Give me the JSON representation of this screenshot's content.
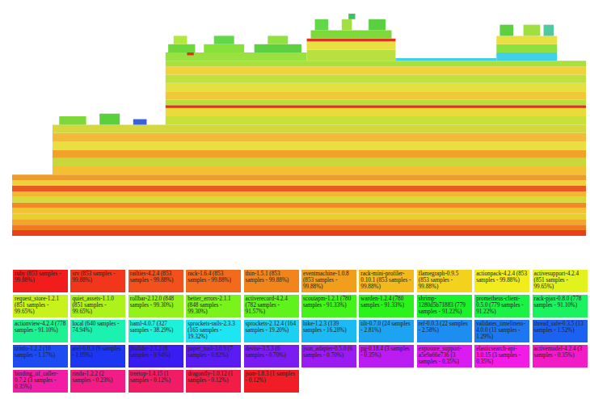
{
  "chart_data": {
    "type": "flamegraph",
    "tick_labels": false,
    "grid": false,
    "xlim": [
      0,
      853
    ],
    "ylim": [
      0,
      82
    ],
    "frames": [
      {
        "start": 0,
        "samples": 853,
        "from": 0,
        "to": 2,
        "color": "#e8401c"
      },
      {
        "start": 0,
        "samples": 853,
        "from": 2,
        "to": 4,
        "color": "#f07a1e"
      },
      {
        "start": 0,
        "samples": 853,
        "from": 4,
        "to": 6,
        "color": "#f2a52a"
      },
      {
        "start": 0,
        "samples": 853,
        "from": 6,
        "to": 8,
        "color": "#e6d02c"
      },
      {
        "start": 0,
        "samples": 853,
        "from": 8,
        "to": 10,
        "color": "#f4c430"
      },
      {
        "start": 0,
        "samples": 853,
        "from": 10,
        "to": 12,
        "color": "#f08a24"
      },
      {
        "start": 0,
        "samples": 853,
        "from": 12,
        "to": 14,
        "color": "#d8d83a"
      },
      {
        "start": 0,
        "samples": 853,
        "from": 14,
        "to": 16,
        "color": "#f2b632"
      },
      {
        "start": 0,
        "samples": 853,
        "from": 16,
        "to": 18,
        "color": "#e85a20"
      },
      {
        "start": 0,
        "samples": 853,
        "from": 18,
        "to": 20,
        "color": "#eed23c"
      },
      {
        "start": 0,
        "samples": 853,
        "from": 20,
        "to": 22,
        "color": "#f09a2a"
      },
      {
        "start": 60,
        "samples": 793,
        "from": 22,
        "to": 25,
        "color": "#f2c032"
      },
      {
        "start": 60,
        "samples": 793,
        "from": 25,
        "to": 28,
        "color": "#c8d83a"
      },
      {
        "start": 60,
        "samples": 793,
        "from": 28,
        "to": 31,
        "color": "#f0a22a"
      },
      {
        "start": 60,
        "samples": 793,
        "from": 31,
        "to": 34,
        "color": "#e8e040"
      },
      {
        "start": 60,
        "samples": 793,
        "from": 34,
        "to": 37,
        "color": "#f4b83a"
      },
      {
        "start": 60,
        "samples": 793,
        "from": 37,
        "to": 40,
        "color": "#d4d83c"
      },
      {
        "start": 70,
        "samples": 40,
        "from": 40,
        "to": 43,
        "color": "#7ed83a"
      },
      {
        "start": 130,
        "samples": 30,
        "from": 40,
        "to": 44,
        "color": "#5ad03c"
      },
      {
        "start": 180,
        "samples": 20,
        "from": 40,
        "to": 42,
        "color": "#3a60e0"
      },
      {
        "start": 228,
        "samples": 625,
        "from": 40,
        "to": 43,
        "color": "#c8e038"
      },
      {
        "start": 228,
        "samples": 625,
        "from": 43,
        "to": 46,
        "color": "#eada3a"
      },
      {
        "start": 228,
        "samples": 625,
        "from": 46,
        "to": 47,
        "color": "#e03020"
      },
      {
        "start": 228,
        "samples": 625,
        "from": 47,
        "to": 49,
        "color": "#b8e03c"
      },
      {
        "start": 228,
        "samples": 625,
        "from": 49,
        "to": 52,
        "color": "#f0c838"
      },
      {
        "start": 228,
        "samples": 625,
        "from": 52,
        "to": 55,
        "color": "#e4e040"
      },
      {
        "start": 228,
        "samples": 625,
        "from": 55,
        "to": 58,
        "color": "#c0e040"
      },
      {
        "start": 228,
        "samples": 625,
        "from": 58,
        "to": 61,
        "color": "#f2d23c"
      },
      {
        "start": 228,
        "samples": 625,
        "from": 61,
        "to": 63,
        "color": "#a8e040"
      },
      {
        "start": 228,
        "samples": 210,
        "from": 63,
        "to": 66,
        "color": "#9ae040"
      },
      {
        "start": 260,
        "samples": 10,
        "from": 65,
        "to": 66,
        "color": "#e03020"
      },
      {
        "start": 232,
        "samples": 40,
        "from": 66,
        "to": 69,
        "color": "#6ed83a"
      },
      {
        "start": 285,
        "samples": 60,
        "from": 66,
        "to": 69,
        "color": "#88e03a"
      },
      {
        "start": 360,
        "samples": 70,
        "from": 66,
        "to": 69,
        "color": "#5cd040"
      },
      {
        "start": 240,
        "samples": 20,
        "from": 69,
        "to": 72,
        "color": "#b0e83c"
      },
      {
        "start": 300,
        "samples": 30,
        "from": 69,
        "to": 72,
        "color": "#60d848"
      },
      {
        "start": 380,
        "samples": 30,
        "from": 69,
        "to": 72,
        "color": "#90e040"
      },
      {
        "start": 438,
        "samples": 132,
        "from": 63,
        "to": 67,
        "color": "#b8e040"
      },
      {
        "start": 438,
        "samples": 132,
        "from": 67,
        "to": 70,
        "color": "#e8e040"
      },
      {
        "start": 438,
        "samples": 132,
        "from": 70,
        "to": 71,
        "color": "#e03020"
      },
      {
        "start": 444,
        "samples": 120,
        "from": 71,
        "to": 74,
        "color": "#7ed83a"
      },
      {
        "start": 450,
        "samples": 20,
        "from": 74,
        "to": 78,
        "color": "#60d848"
      },
      {
        "start": 490,
        "samples": 15,
        "from": 74,
        "to": 78,
        "color": "#a0e040"
      },
      {
        "start": 530,
        "samples": 25,
        "from": 74,
        "to": 78,
        "color": "#58d040"
      },
      {
        "start": 500,
        "samples": 10,
        "from": 78,
        "to": 80,
        "color": "#40c060"
      },
      {
        "start": 570,
        "samples": 150,
        "from": 63,
        "to": 64,
        "color": "#40d0e8"
      },
      {
        "start": 720,
        "samples": 90,
        "from": 63,
        "to": 66,
        "color": "#40d0e8"
      },
      {
        "start": 720,
        "samples": 90,
        "from": 66,
        "to": 69,
        "color": "#8ee040"
      },
      {
        "start": 720,
        "samples": 90,
        "from": 69,
        "to": 72,
        "color": "#e8e040"
      },
      {
        "start": 725,
        "samples": 20,
        "from": 72,
        "to": 76,
        "color": "#5cd040"
      },
      {
        "start": 760,
        "samples": 25,
        "from": 72,
        "to": 76,
        "color": "#9ee040"
      },
      {
        "start": 790,
        "samples": 15,
        "from": 72,
        "to": 76,
        "color": "#50c8a0"
      }
    ],
    "legend_items": [
      {
        "label": "ruby (853 samples - 99.88%)",
        "color": "#f21c1c"
      },
      {
        "label": "srv (853 samples - 99.88%)",
        "color": "#f2361c"
      },
      {
        "label": "railties-4.2.4 (853 samples - 99.88%)",
        "color": "#f2501c"
      },
      {
        "label": "rack-1.6.4 (853 samples - 99.88%)",
        "color": "#f26a1c"
      },
      {
        "label": "thin-1.5.1 (853 samples - 99.88%)",
        "color": "#f2841c"
      },
      {
        "label": "eventmachine-1.0.8 (853 samples - 99.88%)",
        "color": "#f29e1c"
      },
      {
        "label": "rack-mini-profiler-0.10.1 (853 samples - 99.88%)",
        "color": "#f2b81c"
      },
      {
        "label": "flamegraph-0.9.5 (853 samples - 99.88%)",
        "color": "#f2d21c"
      },
      {
        "label": "actionpack-4.2.4 (853 samples - 99.88%)",
        "color": "#f2ec1c"
      },
      {
        "label": "activesupport-4.2.4 (851 samples - 99.65%)",
        "color": "#e2f21c"
      },
      {
        "label": "request_store-1.2.1 (851 samples - 99.65%)",
        "color": "#c8f21c"
      },
      {
        "label": "quiet_assets-1.1.0 (851 samples - 99.65%)",
        "color": "#aef21c"
      },
      {
        "label": "rollbar-2.12.0 (848 samples - 99.30%)",
        "color": "#94f21c"
      },
      {
        "label": "better_errors-2.1.1 (848 samples - 99.30%)",
        "color": "#7af21c"
      },
      {
        "label": "activerecord-4.2.4 (782 samples - 91.57%)",
        "color": "#60f21c"
      },
      {
        "label": "scoutapm-1.2.1 (780 samples - 91.33%)",
        "color": "#46f21c"
      },
      {
        "label": "warden-1.2.4 (780 samples - 91.33%)",
        "color": "#2cf21c"
      },
      {
        "label": "shrimp-1280d5b71883 (779 samples - 91.22%)",
        "color": "#1cf22c"
      },
      {
        "label": "prometheus-client-0.5.0 (779 samples - 91.22%)",
        "color": "#1cf246"
      },
      {
        "label": "rack-pjax-0.8.0 (778 samples - 91.10%)",
        "color": "#1cf260"
      },
      {
        "label": "actionview-4.2.4 (778 samples - 91.10%)",
        "color": "#1cf290"
      },
      {
        "label": "local (640 samples - 74.94%)",
        "color": "#1cf2b0"
      },
      {
        "label": "haml-4.0.7 (327 samples - 38.29%)",
        "color": "#1cf2d8"
      },
      {
        "label": "sprockets-rails-2.3.3 (165 samples - 19.32%)",
        "color": "#1ce6f2"
      },
      {
        "label": "sprockets-2.12.4 (164 samples - 19.20%)",
        "color": "#1cd0f2"
      },
      {
        "label": "hike-1.2.3 (139 samples - 16.28%)",
        "color": "#1cbaf2"
      },
      {
        "label": "tilt-0.7.0 (24 samples - 2.81%)",
        "color": "#1ca4f2"
      },
      {
        "label": "ref-0.0.3 (22 samples - 2.58%)",
        "color": "#1c8ef2"
      },
      {
        "label": "validates_timeliness-4.0.0 (11 samples - 1.29%)",
        "color": "#1c78f2"
      },
      {
        "label": "thread_safe-0.3.5 (13 samples - 1.52%)",
        "color": "#1c62f2"
      },
      {
        "label": "tzinfo-1.2.2 (10 samples - 1.17%)",
        "color": "#1c4cf2"
      },
      {
        "label": "arel-6.0.3 (9 samples - 1.05%)",
        "color": "#1c36f2"
      },
      {
        "label": "jbuilder-2.3.2 (8 samples - 0.94%)",
        "color": "#3a1cf2"
      },
      {
        "label": "paper_trail-3.0.9 (7 samples - 0.82%)",
        "color": "#5a1cf2"
      },
      {
        "label": "devise-3.5.3 (6 samples - 0.70%)",
        "color": "#7a1cf2"
      },
      {
        "label": "json_adapter-0.5.0 (6 samples - 0.70%)",
        "color": "#9a1cf2"
      },
      {
        "label": "pg-0.18.4 (3 samples - 0.35%)",
        "color": "#ba1cf2"
      },
      {
        "label": "exposure_support-a5e9a66e736 (3 samples - 0.35%)",
        "color": "#da1cf2"
      },
      {
        "label": "elasticsearch-api-1.0.15 (3 samples - 0.35%)",
        "color": "#f21ce6"
      },
      {
        "label": "activemodel-4.2.4 (3 samples - 0.35%)",
        "color": "#f21cc6"
      },
      {
        "label": "binding_of_caller-0.7.2 (3 samples - 0.35%)",
        "color": "#f21ca6"
      },
      {
        "label": "rinda-1.2.2 (2 samples - 0.23%)",
        "color": "#f21c86"
      },
      {
        "label": "treetop-1.4.15 (1 samples - 0.12%)",
        "color": "#f21c66"
      },
      {
        "label": "dragonfly-1.0.12 (1 samples - 0.12%)",
        "color": "#f21c46"
      },
      {
        "label": "json-1.8.3 (1 samples - 0.12%)",
        "color": "#f21c26"
      }
    ]
  }
}
